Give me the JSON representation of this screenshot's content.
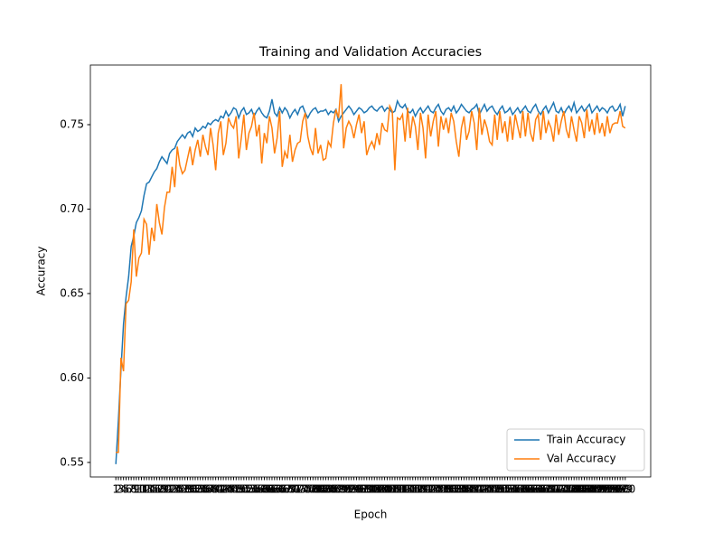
{
  "chart_data": {
    "type": "line",
    "title": "Training and Validation Accuracies",
    "xlabel": "Epoch",
    "ylabel": "Accuracy",
    "x": [
      1,
      2,
      3,
      4,
      5,
      6,
      7,
      8,
      9,
      10,
      11,
      12,
      13,
      14,
      15,
      16,
      17,
      18,
      19,
      20,
      21,
      22,
      23,
      24,
      25,
      26,
      27,
      28,
      29,
      30,
      31,
      32,
      33,
      34,
      35,
      36,
      37,
      38,
      39,
      40,
      41,
      42,
      43,
      44,
      45,
      46,
      47,
      48,
      49,
      50,
      51,
      52,
      53,
      54,
      55,
      56,
      57,
      58,
      59,
      60,
      61,
      62,
      63,
      64,
      65,
      66,
      67,
      68,
      69,
      70,
      71,
      72,
      73,
      74,
      75,
      76,
      77,
      78,
      79,
      80,
      81,
      82,
      83,
      84,
      85,
      86,
      87,
      88,
      89,
      90,
      91,
      92,
      93,
      94,
      95,
      96,
      97,
      98,
      99,
      100,
      101,
      102,
      103,
      104,
      105,
      106,
      107,
      108,
      109,
      110,
      111,
      112,
      113,
      114,
      115,
      116,
      117,
      118,
      119,
      120,
      121,
      122,
      123,
      124,
      125,
      126,
      127,
      128,
      129,
      130,
      131,
      132,
      133,
      134,
      135,
      136,
      137,
      138,
      139,
      140,
      141,
      142,
      143,
      144,
      145,
      146,
      147,
      148,
      149,
      150,
      151,
      152,
      153,
      154,
      155,
      156,
      157,
      158,
      159,
      160,
      161,
      162,
      163,
      164,
      165,
      166,
      167,
      168,
      169,
      170,
      171,
      172,
      173,
      174,
      175,
      176,
      177,
      178,
      179,
      180,
      181,
      182,
      183,
      184,
      185,
      186,
      187,
      188,
      189,
      190,
      191,
      192,
      193,
      194,
      195,
      196,
      197,
      198,
      199,
      200
    ],
    "series": [
      {
        "name": "Train Accuracy",
        "color": "#1f77b4",
        "values": [
          0.549,
          0.575,
          0.605,
          0.632,
          0.648,
          0.66,
          0.678,
          0.684,
          0.692,
          0.695,
          0.699,
          0.708,
          0.715,
          0.716,
          0.719,
          0.722,
          0.724,
          0.728,
          0.731,
          0.729,
          0.727,
          0.733,
          0.735,
          0.736,
          0.74,
          0.742,
          0.744,
          0.742,
          0.745,
          0.746,
          0.743,
          0.748,
          0.746,
          0.747,
          0.749,
          0.748,
          0.751,
          0.75,
          0.752,
          0.753,
          0.752,
          0.755,
          0.754,
          0.758,
          0.755,
          0.757,
          0.76,
          0.759,
          0.754,
          0.758,
          0.76,
          0.756,
          0.757,
          0.759,
          0.755,
          0.758,
          0.76,
          0.757,
          0.755,
          0.754,
          0.758,
          0.765,
          0.757,
          0.755,
          0.76,
          0.757,
          0.76,
          0.758,
          0.754,
          0.757,
          0.759,
          0.756,
          0.76,
          0.761,
          0.757,
          0.754,
          0.757,
          0.759,
          0.76,
          0.757,
          0.758,
          0.758,
          0.759,
          0.756,
          0.758,
          0.757,
          0.759,
          0.752,
          0.755,
          0.757,
          0.759,
          0.761,
          0.759,
          0.756,
          0.758,
          0.76,
          0.759,
          0.757,
          0.758,
          0.76,
          0.761,
          0.759,
          0.758,
          0.76,
          0.761,
          0.758,
          0.76,
          0.759,
          0.757,
          0.758,
          0.764,
          0.761,
          0.76,
          0.762,
          0.758,
          0.757,
          0.759,
          0.755,
          0.758,
          0.76,
          0.757,
          0.759,
          0.761,
          0.758,
          0.757,
          0.76,
          0.762,
          0.758,
          0.756,
          0.759,
          0.76,
          0.758,
          0.761,
          0.757,
          0.759,
          0.762,
          0.76,
          0.758,
          0.757,
          0.759,
          0.76,
          0.762,
          0.756,
          0.759,
          0.762,
          0.758,
          0.76,
          0.761,
          0.758,
          0.756,
          0.759,
          0.761,
          0.757,
          0.758,
          0.76,
          0.756,
          0.758,
          0.76,
          0.757,
          0.759,
          0.761,
          0.758,
          0.757,
          0.76,
          0.762,
          0.758,
          0.756,
          0.759,
          0.761,
          0.757,
          0.76,
          0.763,
          0.758,
          0.757,
          0.76,
          0.756,
          0.759,
          0.761,
          0.758,
          0.763,
          0.757,
          0.759,
          0.761,
          0.758,
          0.76,
          0.762,
          0.757,
          0.759,
          0.761,
          0.758,
          0.76,
          0.759,
          0.757,
          0.76,
          0.761,
          0.758,
          0.759,
          0.762,
          0.755,
          0.761
        ]
      },
      {
        "name": "Val Accuracy",
        "color": "#ff7f0e",
        "values": [
          0.556,
          0.556,
          0.612,
          0.604,
          0.644,
          0.646,
          0.657,
          0.688,
          0.66,
          0.671,
          0.674,
          0.694,
          0.691,
          0.673,
          0.689,
          0.681,
          0.703,
          0.692,
          0.685,
          0.701,
          0.71,
          0.71,
          0.725,
          0.713,
          0.737,
          0.726,
          0.721,
          0.723,
          0.73,
          0.737,
          0.726,
          0.735,
          0.741,
          0.731,
          0.744,
          0.737,
          0.732,
          0.748,
          0.738,
          0.723,
          0.745,
          0.752,
          0.732,
          0.739,
          0.754,
          0.75,
          0.748,
          0.755,
          0.73,
          0.742,
          0.756,
          0.735,
          0.745,
          0.749,
          0.757,
          0.743,
          0.75,
          0.727,
          0.745,
          0.739,
          0.755,
          0.748,
          0.733,
          0.742,
          0.758,
          0.725,
          0.734,
          0.73,
          0.744,
          0.728,
          0.735,
          0.739,
          0.74,
          0.752,
          0.757,
          0.743,
          0.736,
          0.732,
          0.748,
          0.733,
          0.738,
          0.729,
          0.73,
          0.74,
          0.737,
          0.751,
          0.759,
          0.754,
          0.774,
          0.736,
          0.748,
          0.752,
          0.749,
          0.742,
          0.75,
          0.756,
          0.745,
          0.752,
          0.732,
          0.737,
          0.74,
          0.736,
          0.745,
          0.738,
          0.751,
          0.747,
          0.746,
          0.761,
          0.758,
          0.723,
          0.754,
          0.753,
          0.756,
          0.74,
          0.76,
          0.742,
          0.755,
          0.749,
          0.735,
          0.757,
          0.748,
          0.73,
          0.756,
          0.743,
          0.752,
          0.758,
          0.737,
          0.755,
          0.747,
          0.754,
          0.745,
          0.757,
          0.752,
          0.74,
          0.731,
          0.748,
          0.755,
          0.741,
          0.746,
          0.758,
          0.751,
          0.735,
          0.76,
          0.744,
          0.753,
          0.748,
          0.74,
          0.738,
          0.756,
          0.741,
          0.758,
          0.745,
          0.752,
          0.74,
          0.755,
          0.741,
          0.756,
          0.749,
          0.742,
          0.758,
          0.743,
          0.757,
          0.745,
          0.74,
          0.753,
          0.756,
          0.741,
          0.758,
          0.745,
          0.752,
          0.748,
          0.74,
          0.756,
          0.744,
          0.752,
          0.758,
          0.747,
          0.742,
          0.755,
          0.747,
          0.74,
          0.755,
          0.751,
          0.742,
          0.759,
          0.746,
          0.753,
          0.744,
          0.757,
          0.745,
          0.751,
          0.743,
          0.755,
          0.745,
          0.75,
          0.751,
          0.751,
          0.758,
          0.749,
          0.748
        ]
      }
    ],
    "xlim": [
      -8.95,
      209.95
    ],
    "ylim": [
      0.5414,
      0.7853
    ],
    "yticks": [
      0.55,
      {
        "value": 0.6,
        "label": "0.60"
      },
      0.65,
      {
        "value": 0.7,
        "label": "0.70"
      },
      0.75
    ],
    "legend": "lower right",
    "grid": false
  }
}
